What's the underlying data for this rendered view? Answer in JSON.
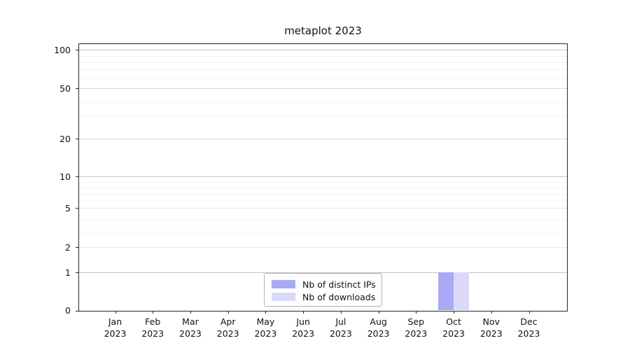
{
  "title": "metaplot 2023",
  "colors": {
    "distinct_ips": "#a9a9f5",
    "downloads": "#dadaf8",
    "axis": "#262626",
    "legend_border": "#b0b0b0"
  },
  "y_axis": {
    "labeled_ticks": [
      {
        "value": 0,
        "label": "0"
      },
      {
        "value": 1,
        "label": "1"
      },
      {
        "value": 2,
        "label": "2"
      },
      {
        "value": 5,
        "label": "5"
      },
      {
        "value": 10,
        "label": "10"
      },
      {
        "value": 20,
        "label": "20"
      },
      {
        "value": 50,
        "label": "50"
      },
      {
        "value": 100,
        "label": "100"
      }
    ],
    "minor_tick_values": [
      3,
      4,
      6,
      7,
      8,
      9,
      30,
      40,
      60,
      70,
      80,
      90
    ]
  },
  "x_axis": {
    "months": [
      {
        "label": "Jan",
        "year": "2023"
      },
      {
        "label": "Feb",
        "year": "2023"
      },
      {
        "label": "Mar",
        "year": "2023"
      },
      {
        "label": "Apr",
        "year": "2023"
      },
      {
        "label": "May",
        "year": "2023"
      },
      {
        "label": "Jun",
        "year": "2023"
      },
      {
        "label": "Jul",
        "year": "2023"
      },
      {
        "label": "Aug",
        "year": "2023"
      },
      {
        "label": "Sep",
        "year": "2023"
      },
      {
        "label": "Oct",
        "year": "2023"
      },
      {
        "label": "Nov",
        "year": "2023"
      },
      {
        "label": "Dec",
        "year": "2023"
      }
    ]
  },
  "legend": {
    "items": [
      {
        "label": "Nb of distinct IPs",
        "color": "#a9a9f5"
      },
      {
        "label": "Nb of downloads",
        "color": "#dadaf8"
      }
    ]
  },
  "chart_data": {
    "type": "bar",
    "title": "metaplot 2023",
    "categories": [
      "Jan 2023",
      "Feb 2023",
      "Mar 2023",
      "Apr 2023",
      "May 2023",
      "Jun 2023",
      "Jul 2023",
      "Aug 2023",
      "Sep 2023",
      "Oct 2023",
      "Nov 2023",
      "Dec 2023"
    ],
    "series": [
      {
        "name": "Nb of distinct IPs",
        "color": "#a9a9f5",
        "values": [
          0,
          0,
          0,
          0,
          0,
          0,
          0,
          0,
          0,
          1,
          0,
          0
        ]
      },
      {
        "name": "Nb of downloads",
        "color": "#dadaf8",
        "values": [
          0,
          0,
          0,
          0,
          0,
          0,
          0,
          0,
          0,
          1,
          0,
          0
        ]
      }
    ],
    "yscale": "log-like-with-zero",
    "y_ticks": [
      0,
      1,
      2,
      5,
      10,
      20,
      50,
      100
    ],
    "ylim": [
      0,
      112
    ],
    "grid": "horizontal",
    "legend_position": "inside lower-center"
  }
}
